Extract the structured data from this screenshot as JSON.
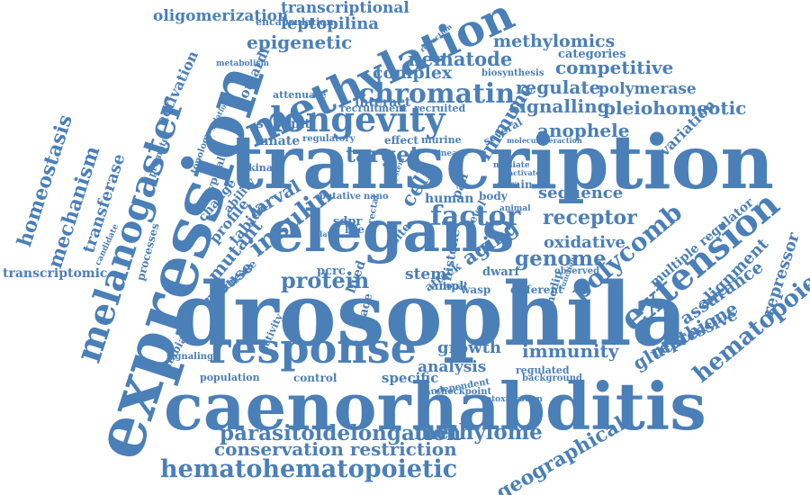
{
  "word_color": "#4a7fb8",
  "words": [
    {
      "text": "transcription"
    },
    {
      "text": "drosophila"
    },
    {
      "text": "caenorhabditis"
    },
    {
      "text": "expression"
    },
    {
      "text": "elegans"
    },
    {
      "text": "methylation"
    },
    {
      "text": "response"
    },
    {
      "text": "melanogaster"
    },
    {
      "text": "longevity"
    },
    {
      "text": "hematohematopoietic"
    },
    {
      "text": "chromatin"
    },
    {
      "text": "factor"
    },
    {
      "text": "extension"
    },
    {
      "text": "insulin"
    },
    {
      "text": "parasitoidelongation"
    },
    {
      "text": "methylome"
    },
    {
      "text": "conservation restriction"
    },
    {
      "text": "geographical"
    },
    {
      "text": "hematopoietic"
    },
    {
      "text": "homeostasis"
    },
    {
      "text": "mechanism"
    },
    {
      "text": "transferase"
    },
    {
      "text": "transcriptomic"
    },
    {
      "text": "oligomerization"
    },
    {
      "text": "transcriptional"
    },
    {
      "text": "leptopilina"
    },
    {
      "text": "epigenetic"
    },
    {
      "text": "methylomics"
    },
    {
      "text": "nematode"
    },
    {
      "text": "competitive"
    },
    {
      "text": "complex"
    },
    {
      "text": "regulate"
    },
    {
      "text": "polymerase"
    },
    {
      "text": "signalling"
    },
    {
      "text": "pleiohomeotic"
    },
    {
      "text": "anophele"
    },
    {
      "text": "immune"
    },
    {
      "text": "target"
    },
    {
      "text": "cell"
    },
    {
      "text": "sequence"
    },
    {
      "text": "receptor"
    },
    {
      "text": "polycomb"
    },
    {
      "text": "oxidative"
    },
    {
      "text": "genome"
    },
    {
      "text": "aging"
    },
    {
      "text": "protein"
    },
    {
      "text": "immunity"
    },
    {
      "text": "growth"
    },
    {
      "text": "analysis"
    },
    {
      "text": "glutathione"
    },
    {
      "text": "assurance"
    },
    {
      "text": "repressive"
    },
    {
      "text": "repressor"
    },
    {
      "text": "alignment"
    },
    {
      "text": "multiple regulator"
    },
    {
      "text": "mutant"
    },
    {
      "text": "profile"
    },
    {
      "text": "larval"
    },
    {
      "text": "mouse"
    },
    {
      "text": "boulardi"
    },
    {
      "text": "interact"
    },
    {
      "text": "subunit"
    },
    {
      "text": "innate"
    },
    {
      "text": "activation"
    },
    {
      "text": "variation"
    },
    {
      "text": "stem"
    },
    {
      "text": "ampk"
    },
    {
      "text": "dwarf"
    },
    {
      "text": "specific"
    },
    {
      "text": "population"
    },
    {
      "text": "control"
    },
    {
      "text": "gambiae"
    },
    {
      "text": "human"
    },
    {
      "text": "pcrc"
    },
    {
      "text": "sdpr"
    },
    {
      "text": "processes"
    },
    {
      "text": "signaling"
    },
    {
      "text": "activity"
    },
    {
      "text": "candidate"
    },
    {
      "text": "promoter"
    },
    {
      "text": "kinase"
    },
    {
      "text": "effect"
    },
    {
      "text": "murine"
    },
    {
      "text": "regulatory"
    },
    {
      "text": "recruitment"
    },
    {
      "text": "recruited"
    },
    {
      "text": "attenuate"
    },
    {
      "text": "encapsulation"
    },
    {
      "text": "metabolism"
    },
    {
      "text": "reduction"
    },
    {
      "text": "biosynthesis"
    },
    {
      "text": "categories"
    },
    {
      "text": "several"
    },
    {
      "text": "molecular"
    },
    {
      "text": "interaction"
    },
    {
      "text": "mediate"
    },
    {
      "text": "activated"
    },
    {
      "text": "animal"
    },
    {
      "text": "strain"
    },
    {
      "text": "body"
    },
    {
      "text": "histone"
    },
    {
      "text": "attack"
    },
    {
      "text": "site"
    },
    {
      "text": "trade"
    },
    {
      "text": "lived"
    },
    {
      "text": "life"
    },
    {
      "text": "putative"
    },
    {
      "text": "nano"
    },
    {
      "text": "related"
    },
    {
      "text": "level"
    },
    {
      "text": "pan"
    },
    {
      "text": "wasp"
    },
    {
      "text": "different"
    },
    {
      "text": "local"
    },
    {
      "text": "regulated"
    },
    {
      "text": "background"
    },
    {
      "text": "checkpoint"
    },
    {
      "text": "independent"
    },
    {
      "text": "detoxification"
    },
    {
      "text": "function"
    },
    {
      "text": "observed"
    },
    {
      "text": "medip"
    },
    {
      "text": "regulation"
    },
    {
      "text": "system"
    },
    {
      "text": "topology"
    },
    {
      "text": "atypical"
    },
    {
      "text": "change"
    },
    {
      "text": "ability"
    },
    {
      "text": "tabida"
    },
    {
      "text": "increase"
    },
    {
      "text": "rectal"
    },
    {
      "text": "lineage"
    },
    {
      "text": "insect"
    },
    {
      "text": "tissue"
    },
    {
      "text": "family"
    },
    {
      "text": "pathway"
    },
    {
      "text": "virus"
    }
  ]
}
